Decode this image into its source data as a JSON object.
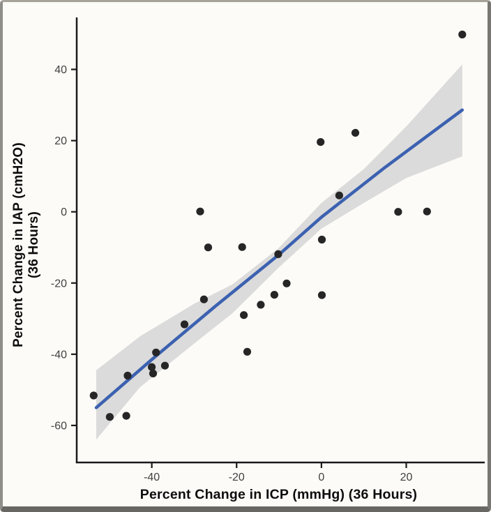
{
  "figure": {
    "background": "#fcfbf7",
    "frame_color": "#787772"
  },
  "chart_data": {
    "type": "scatter",
    "title": "",
    "xlabel": "Percent Change in ICP (mmHg) (36 Hours)",
    "ylabel_line1": "Percent Change in IAP (cmH2O)",
    "ylabel_line2": "(36 Hours)",
    "x_ticks": [
      -40,
      -20,
      0,
      20
    ],
    "y_ticks": [
      40,
      20,
      0,
      -20,
      -40,
      -60
    ],
    "xlim": [
      -57.7,
      38.5
    ],
    "ylim": [
      -70.4,
      54.6
    ],
    "grid": false,
    "legend": "none",
    "point_color": "#262626",
    "axis_color": "#1a1a1a",
    "tick_label_color": "#404040",
    "points": [
      [
        33.2,
        49.8
      ],
      [
        8,
        22.2
      ],
      [
        -0.2,
        19.6
      ],
      [
        4.2,
        4.6
      ],
      [
        18.1,
        0
      ],
      [
        24.9,
        0.1
      ],
      [
        0.1,
        -7.8
      ],
      [
        -10.2,
        -11.9
      ],
      [
        -28.6,
        0.1
      ],
      [
        -26.7,
        -10
      ],
      [
        -18.7,
        -9.9
      ],
      [
        -8.2,
        -20.1
      ],
      [
        -11.1,
        -23.3
      ],
      [
        -14.3,
        -26.1
      ],
      [
        0.1,
        -23.4
      ],
      [
        -18.3,
        -29
      ],
      [
        -17.5,
        -39.3
      ],
      [
        -27.7,
        -24.6
      ],
      [
        -32.3,
        -31.6
      ],
      [
        -39,
        -39.5
      ],
      [
        -40,
        -43.6
      ],
      [
        -36.9,
        -43.2
      ],
      [
        -39.7,
        -45.4
      ],
      [
        -45.7,
        -46
      ],
      [
        -53.7,
        -51.6
      ],
      [
        -49.9,
        -57.6
      ],
      [
        -46,
        -57.3
      ]
    ],
    "trend_line": {
      "type": "smooth",
      "color": "#3c61b0",
      "points": [
        [
          -53.1,
          -55
        ],
        [
          -40,
          -41.5
        ],
        [
          -25,
          -26.5
        ],
        [
          -10,
          -12
        ],
        [
          0,
          -1.5
        ],
        [
          15,
          12.5
        ],
        [
          33.2,
          28.6
        ]
      ]
    },
    "confidence_band": {
      "color": "#dbdbdb",
      "upper": [
        [
          -53.1,
          -44.5
        ],
        [
          -42.8,
          -35
        ],
        [
          -30,
          -25.8
        ],
        [
          -21,
          -20.4
        ],
        [
          -10.2,
          -10.3
        ],
        [
          0,
          2.5
        ],
        [
          10,
          12
        ],
        [
          20,
          24
        ],
        [
          33.2,
          41.4
        ]
      ],
      "lower": [
        [
          -53.1,
          -64
        ],
        [
          -42.8,
          -49.3
        ],
        [
          -30,
          -37
        ],
        [
          -21,
          -28.5
        ],
        [
          -10.2,
          -15.8
        ],
        [
          0,
          -4.7
        ],
        [
          10,
          2.5
        ],
        [
          20,
          9.5
        ],
        [
          33.2,
          15.6
        ]
      ]
    }
  }
}
